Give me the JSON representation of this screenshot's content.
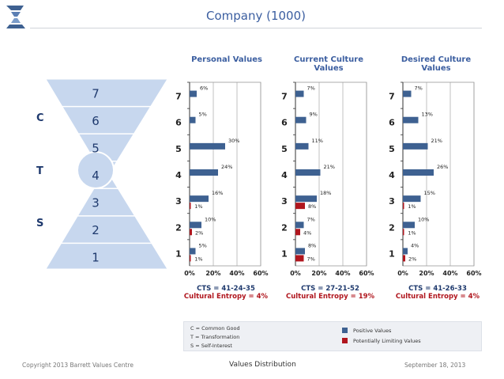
{
  "title": "Company (1000)",
  "hourglass": {
    "levels": [
      "7",
      "6",
      "5",
      "4",
      "3",
      "2",
      "1"
    ],
    "side_labels": [
      "C",
      "T",
      "S"
    ]
  },
  "legend": {
    "abbrev": [
      "C = Common Good",
      "T = Transformation",
      "S = Self-Interest"
    ],
    "entries": [
      {
        "label": "Positive Values",
        "color": "#3e6191"
      },
      {
        "label": "Potentially Limiting Values",
        "color": "#b0161e"
      }
    ]
  },
  "footer": {
    "copyright": "Copyright 2013 Barrett Values Centre",
    "center": "Values Distribution",
    "date": "September 18, 2013"
  },
  "chart_data": [
    {
      "type": "bar",
      "title": "Personal Values",
      "categories": [
        "7",
        "6",
        "5",
        "4",
        "3",
        "2",
        "1"
      ],
      "xlim": [
        0,
        60
      ],
      "x_ticks": [
        "0%",
        "20%",
        "40%",
        "60%"
      ],
      "grid": true,
      "series": [
        {
          "values": [
            6,
            5,
            30,
            24,
            16,
            10,
            5
          ],
          "color": "#3e6191",
          "labels": [
            "6%",
            "5%",
            "30%",
            "24%",
            "16%",
            "10%",
            "5%"
          ]
        },
        {
          "values": [
            0,
            0,
            0,
            0,
            1,
            2,
            1
          ],
          "color": "#b0161e",
          "labels": [
            "",
            "",
            "",
            "",
            "1%",
            "2%",
            "1%"
          ]
        }
      ],
      "cts": "CTS = 41-24-35",
      "entropy": "Cultural Entropy = 4%"
    },
    {
      "type": "bar",
      "title": "Current Culture Values",
      "categories": [
        "7",
        "6",
        "5",
        "4",
        "3",
        "2",
        "1"
      ],
      "xlim": [
        0,
        60
      ],
      "x_ticks": [
        "0%",
        "20%",
        "40%",
        "60%"
      ],
      "grid": true,
      "series": [
        {
          "values": [
            7,
            9,
            11,
            21,
            18,
            7,
            8
          ],
          "color": "#3e6191",
          "labels": [
            "7%",
            "9%",
            "11%",
            "21%",
            "18%",
            "7%",
            "8%"
          ]
        },
        {
          "values": [
            0,
            0,
            0,
            0,
            8,
            4,
            7
          ],
          "color": "#b0161e",
          "labels": [
            "",
            "",
            "",
            "",
            "8%",
            "4%",
            "7%"
          ]
        }
      ],
      "cts": "CTS = 27-21-52",
      "entropy": "Cultural Entropy = 19%"
    },
    {
      "type": "bar",
      "title": "Desired Culture Values",
      "categories": [
        "7",
        "6",
        "5",
        "4",
        "3",
        "2",
        "1"
      ],
      "xlim": [
        0,
        60
      ],
      "x_ticks": [
        "0%",
        "20%",
        "40%",
        "60%"
      ],
      "grid": true,
      "series": [
        {
          "values": [
            7,
            13,
            21,
            26,
            15,
            10,
            4
          ],
          "color": "#3e6191",
          "labels": [
            "7%",
            "13%",
            "21%",
            "26%",
            "15%",
            "10%",
            "4%"
          ]
        },
        {
          "values": [
            0,
            0,
            0,
            0,
            1,
            1,
            2
          ],
          "color": "#b0161e",
          "labels": [
            "",
            "",
            "",
            "",
            "1%",
            "1%",
            "2%"
          ]
        }
      ],
      "cts": "CTS = 41-26-33",
      "entropy": "Cultural Entropy = 4%"
    }
  ]
}
